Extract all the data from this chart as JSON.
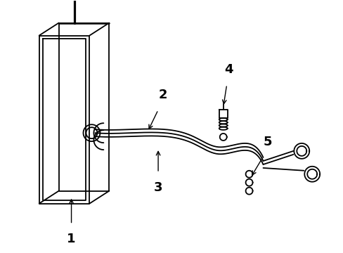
{
  "background_color": "#ffffff",
  "line_color": "#000000",
  "fig_width": 4.89,
  "fig_height": 3.6,
  "dpi": 100,
  "label_fontsize": 13
}
